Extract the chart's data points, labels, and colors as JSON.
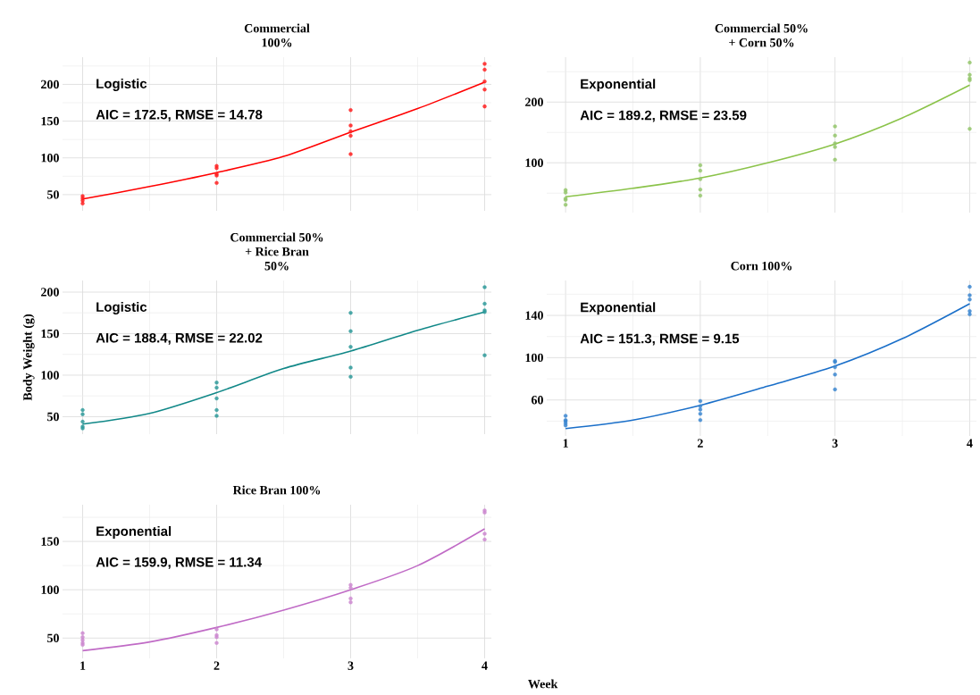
{
  "chart_data": [
    {
      "type": "scatter",
      "title": "Commercial\n100%",
      "annotations": [
        "Logistic",
        "AIC = 172.5, RMSE = 14.78"
      ],
      "xlim": [
        0.85,
        4.05
      ],
      "ylim": [
        28,
        237
      ],
      "xticks": [
        1,
        2,
        3,
        4
      ],
      "yticks": [
        50,
        100,
        150,
        200
      ],
      "grid": true,
      "tick_labels": "y",
      "series": [
        {
          "marker": "circle",
          "color": "#ff2020",
          "x": [
            1,
            1,
            1,
            1,
            2,
            2,
            2,
            2,
            2,
            3,
            3,
            3,
            3,
            3,
            4,
            4,
            4,
            4,
            4
          ],
          "values": [
            48,
            45,
            42,
            38,
            89,
            86,
            78,
            76,
            66,
            165,
            144,
            136,
            130,
            105,
            228,
            220,
            204,
            193,
            170
          ]
        },
        {
          "type": "line",
          "marker": "none",
          "color": "#ff0000",
          "x": [
            1,
            1.5,
            2,
            2.5,
            3,
            3.5,
            4
          ],
          "values": [
            44,
            61,
            80,
            102,
            135,
            167,
            203
          ]
        }
      ]
    },
    {
      "type": "scatter",
      "title": "Commercial 50%\n+ Corn 50%",
      "annotations": [
        "Exponential",
        "AIC = 189.2, RMSE = 23.59"
      ],
      "xlim": [
        0.86,
        4.05
      ],
      "ylim": [
        18,
        274
      ],
      "xticks": [
        1,
        2,
        3,
        4
      ],
      "yticks": [
        100,
        200
      ],
      "grid": true,
      "tick_labels": "y",
      "series": [
        {
          "marker": "circle",
          "color": "#93c56a",
          "x": [
            1,
            1,
            1,
            1,
            1,
            2,
            2,
            2,
            2,
            2,
            3,
            3,
            3,
            3,
            3,
            4,
            4,
            4,
            4,
            4
          ],
          "values": [
            55,
            51,
            41,
            39,
            31,
            96,
            87,
            73,
            56,
            46,
            160,
            145,
            132,
            126,
            105,
            265,
            245,
            239,
            236,
            156
          ]
        },
        {
          "type": "line",
          "marker": "none",
          "color": "#8bc34a",
          "x": [
            1,
            1.5,
            2,
            2.5,
            3,
            3.5,
            4
          ],
          "values": [
            44,
            58,
            75,
            100,
            131,
            174,
            228
          ]
        }
      ]
    },
    {
      "type": "scatter",
      "title": "Commercial 50%\n+ Rice Bran\n50%",
      "ylabel": "Body Weight (g)",
      "annotations": [
        "Logistic",
        "AIC = 188.4, RMSE = 22.02"
      ],
      "xlim": [
        0.85,
        4.05
      ],
      "ylim": [
        29,
        214
      ],
      "xticks": [
        1,
        2,
        3,
        4
      ],
      "yticks": [
        50,
        100,
        150,
        200
      ],
      "grid": true,
      "tick_labels": "y",
      "series": [
        {
          "marker": "circle",
          "color": "#2e9a9a",
          "x": [
            1,
            1,
            1,
            1,
            1,
            2,
            2,
            2,
            2,
            2,
            3,
            3,
            3,
            3,
            3,
            4,
            4,
            4,
            4,
            4
          ],
          "values": [
            58,
            53,
            44,
            38,
            36,
            91,
            85,
            72,
            58,
            51,
            175,
            153,
            134,
            109,
            98,
            206,
            186,
            178,
            176,
            124
          ]
        },
        {
          "type": "line",
          "marker": "none",
          "color": "#118888",
          "x": [
            1,
            1.5,
            2,
            2.5,
            3,
            3.5,
            4
          ],
          "values": [
            41,
            54,
            79,
            108,
            129,
            154,
            176
          ]
        }
      ]
    },
    {
      "type": "scatter",
      "title": "Corn 100%",
      "annotations": [
        "Exponential",
        "AIC = 151.3, RMSE = 9.15"
      ],
      "xlim": [
        0.86,
        4.05
      ],
      "ylim": [
        26,
        173
      ],
      "xticks": [
        1,
        2,
        3,
        4
      ],
      "yticks": [
        60,
        100,
        140
      ],
      "grid": true,
      "series": [
        {
          "marker": "circle",
          "color": "#3a86d0",
          "x": [
            1,
            1,
            1,
            1,
            1,
            2,
            2,
            2,
            2,
            2,
            3,
            3,
            3,
            3,
            3,
            4,
            4,
            4,
            4,
            4
          ],
          "values": [
            45,
            41,
            40,
            38,
            36,
            59,
            54,
            51,
            47,
            41,
            97,
            96,
            91,
            84,
            70,
            167,
            159,
            155,
            144,
            141
          ]
        },
        {
          "type": "line",
          "marker": "none",
          "color": "#1a6fc9",
          "x": [
            1,
            1.5,
            2,
            2.5,
            3,
            3.5,
            4
          ],
          "values": [
            33,
            41,
            55,
            73,
            92,
            118,
            151
          ]
        }
      ]
    },
    {
      "type": "scatter",
      "title": "Rice Bran 100%",
      "xlabel": "Week",
      "annotations": [
        "Exponential",
        "AIC = 159.9, RMSE = 11.34"
      ],
      "xlim": [
        0.85,
        4.05
      ],
      "ylim": [
        29,
        188
      ],
      "xticks": [
        1,
        2,
        3,
        4
      ],
      "yticks": [
        50,
        100,
        150
      ],
      "grid": true,
      "series": [
        {
          "marker": "circle",
          "color": "#cc88d0",
          "x": [
            1,
            1,
            1,
            1,
            1,
            2,
            2,
            2,
            2,
            3,
            3,
            3,
            3,
            4,
            4,
            4,
            4
          ],
          "values": [
            55,
            51,
            48,
            45,
            43,
            59,
            53,
            51,
            45,
            105,
            102,
            91,
            87,
            182,
            180,
            158,
            152
          ]
        },
        {
          "type": "line",
          "marker": "none",
          "color": "#c06bc6",
          "x": [
            1,
            1.5,
            2,
            2.5,
            3,
            3.5,
            4
          ],
          "values": [
            37,
            46,
            61,
            79,
            100,
            125,
            163
          ]
        }
      ]
    }
  ]
}
